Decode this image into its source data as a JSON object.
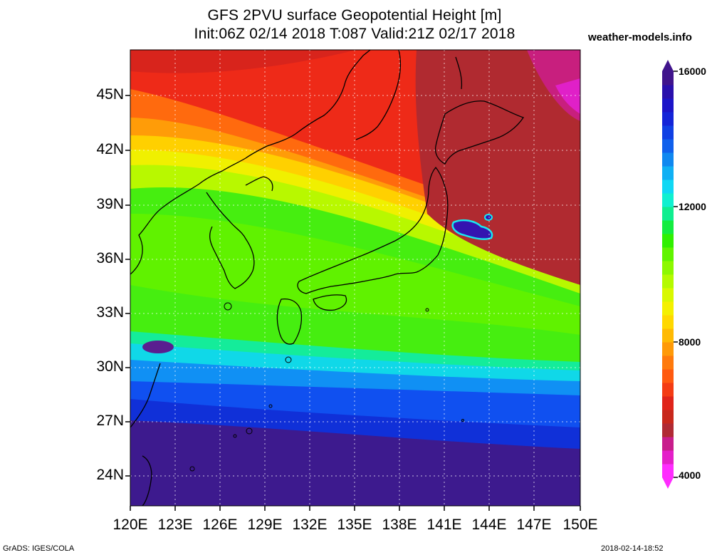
{
  "header": {
    "title_line1": "GFS 2PVU surface Geopotential Height [m]",
    "title_line2": "Init:06Z 02/14 2018 T:087 Valid:21Z 02/17 2018",
    "site": "weather-models.info"
  },
  "axes": {
    "y_ticks": [
      "45N",
      "42N",
      "39N",
      "36N",
      "33N",
      "30N",
      "27N",
      "24N"
    ],
    "x_ticks": [
      "120E",
      "123E",
      "126E",
      "129E",
      "132E",
      "135E",
      "138E",
      "141E",
      "144E",
      "147E",
      "150E"
    ],
    "lon_range": [
      120,
      150
    ],
    "lat_range": [
      22.5,
      47.5
    ]
  },
  "colorbar": {
    "labels": [
      "16000",
      "12000",
      "8000",
      "4000"
    ],
    "min": 4000,
    "max": 16000,
    "colors": [
      "#ff2cff",
      "#e41fc9",
      "#c81d8c",
      "#b02a34",
      "#c8281c",
      "#e0241a",
      "#f43c14",
      "#ff5a10",
      "#ff7a0c",
      "#ff9a08",
      "#ffba04",
      "#ffd800",
      "#f4f000",
      "#d8f800",
      "#b4fa00",
      "#8cf800",
      "#60f400",
      "#30f000",
      "#14ec40",
      "#10ee90",
      "#10f0d0",
      "#10d8f4",
      "#10b0f4",
      "#1088f0",
      "#1060ec",
      "#1040e4",
      "#1424d8",
      "#1c14c8",
      "#2a10ac",
      "#40148c"
    ]
  },
  "footer": {
    "left": "GrADS: IGES/COLA",
    "right": "2018-02-14-18:52"
  }
}
